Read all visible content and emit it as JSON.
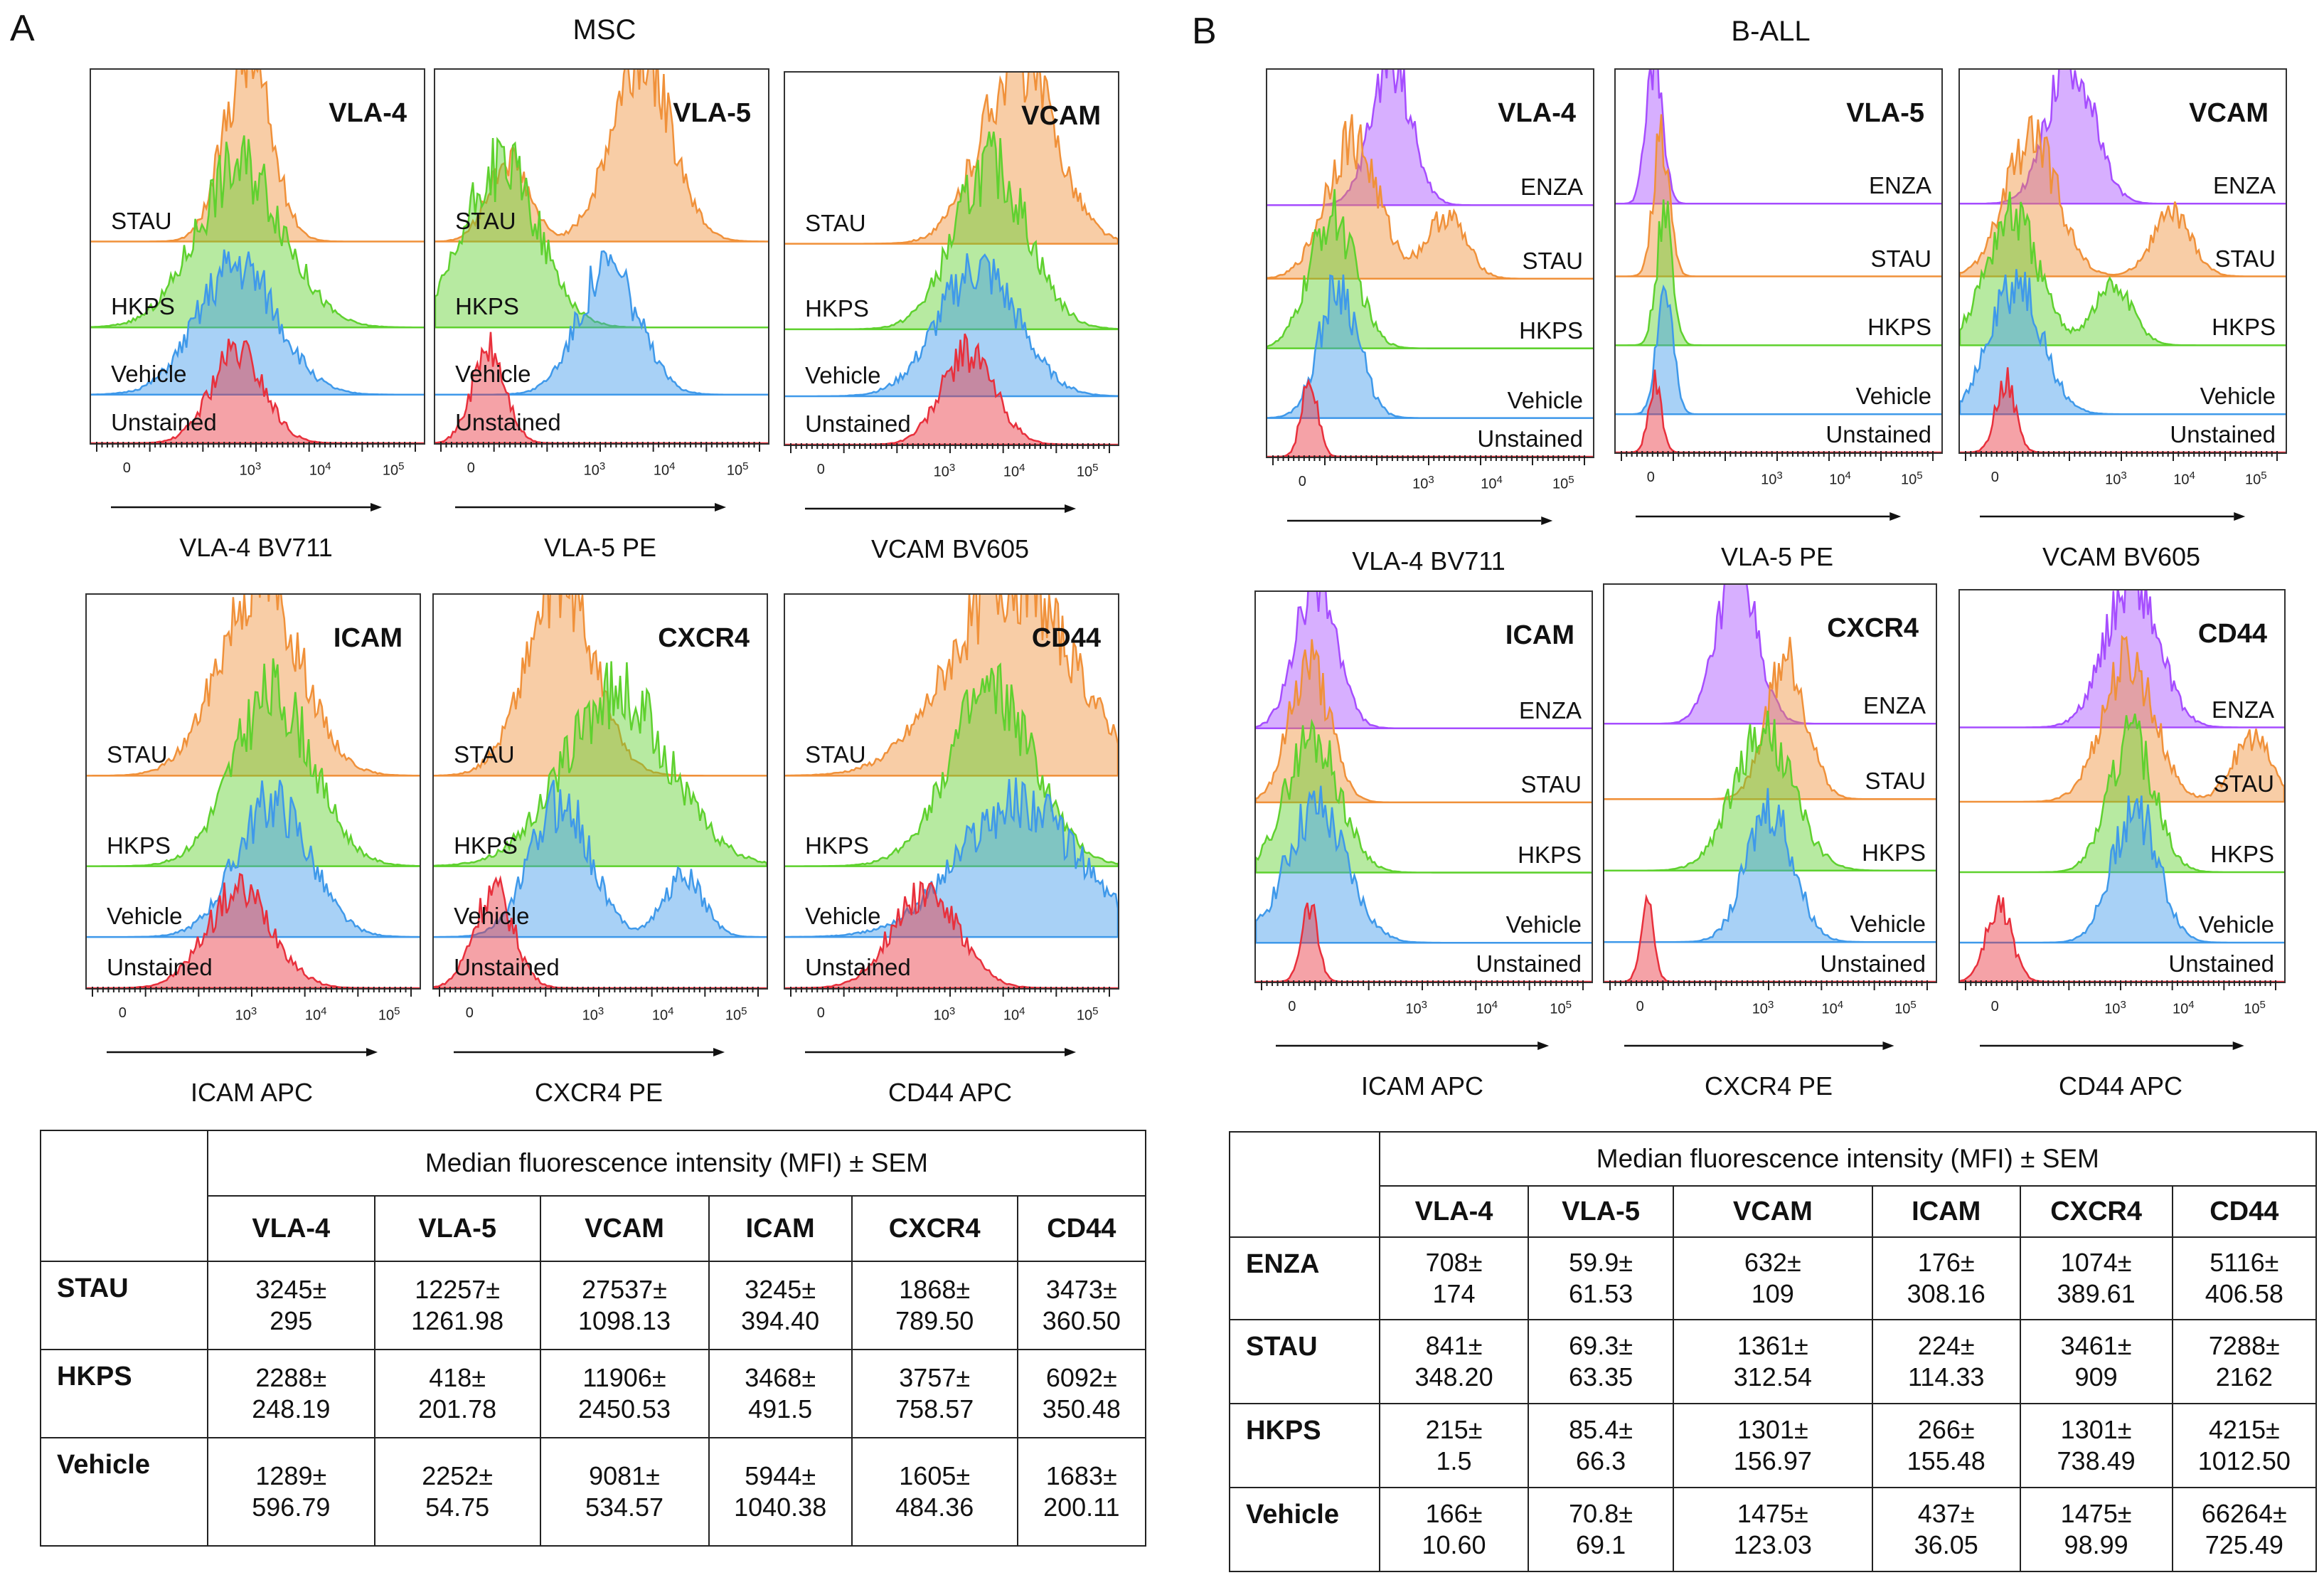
{
  "panels": [
    {
      "letter": "A",
      "title": "MSC",
      "plots": [
        {
          "marker": "VLA-4",
          "axis_label": "VLA-4 BV711",
          "tracks": [
            "STAU",
            "HKPS",
            "Vehicle",
            "Unstained"
          ]
        },
        {
          "marker": "VLA-5",
          "axis_label": "VLA-5 PE",
          "tracks": [
            "STAU",
            "HKPS",
            "Vehicle",
            "Unstained"
          ]
        },
        {
          "marker": "VCAM",
          "axis_label": "VCAM BV605",
          "tracks": [
            "STAU",
            "HKPS",
            "Vehicle",
            "Unstained"
          ]
        },
        {
          "marker": "ICAM",
          "axis_label": "ICAM APC",
          "tracks": [
            "STAU",
            "HKPS",
            "Vehicle",
            "Unstained"
          ]
        },
        {
          "marker": "CXCR4",
          "axis_label": "CXCR4 PE",
          "tracks": [
            "STAU",
            "HKPS",
            "Vehicle",
            "Unstained"
          ]
        },
        {
          "marker": "CD44",
          "axis_label": "CD44 APC",
          "tracks": [
            "STAU",
            "HKPS",
            "Vehicle",
            "Unstained"
          ]
        }
      ]
    },
    {
      "letter": "B",
      "title": "B-ALL",
      "plots": [
        {
          "marker": "VLA-4",
          "axis_label": "VLA-4 BV711",
          "tracks": [
            "ENZA",
            "STAU",
            "HKPS",
            "Vehicle",
            "Unstained"
          ]
        },
        {
          "marker": "VLA-5",
          "axis_label": "VLA-5 PE",
          "tracks": [
            "ENZA",
            "STAU",
            "HKPS",
            "Vehicle",
            "Unstained"
          ]
        },
        {
          "marker": "VCAM",
          "axis_label": "VCAM BV605",
          "tracks": [
            "ENZA",
            "STAU",
            "HKPS",
            "Vehicle",
            "Unstained"
          ]
        },
        {
          "marker": "ICAM",
          "axis_label": "ICAM APC",
          "tracks": [
            "ENZA",
            "STAU",
            "HKPS",
            "Vehicle",
            "Unstained"
          ]
        },
        {
          "marker": "CXCR4",
          "axis_label": "CXCR4 PE",
          "tracks": [
            "ENZA",
            "STAU",
            "HKPS",
            "Vehicle",
            "Unstained"
          ]
        },
        {
          "marker": "CD44",
          "axis_label": "CD44 APC",
          "tracks": [
            "ENZA",
            "STAU",
            "HKPS",
            "Vehicle",
            "Unstained"
          ]
        }
      ]
    }
  ],
  "axis_ticks": {
    "zero": "0",
    "base": "10",
    "exponents": [
      "3",
      "4",
      "5"
    ]
  },
  "colors": {
    "ENZA": "#a64dff",
    "STAU": "#f0913a",
    "HKPS": "#5fd12f",
    "Vehicle": "#3f99ea",
    "Unstained": "#e8303c"
  },
  "tables": [
    {
      "header": "Median fluorescence intensity (MFI) ± SEM",
      "columns": [
        "VLA-4",
        "VLA-5",
        "VCAM",
        "ICAM",
        "CXCR4",
        "CD44"
      ],
      "rows": [
        {
          "name": "STAU",
          "cells": [
            [
              "3245±",
              "295"
            ],
            [
              "12257±",
              "1261.98"
            ],
            [
              "27537±",
              "1098.13"
            ],
            [
              "3245±",
              "394.40"
            ],
            [
              "1868±",
              "789.50"
            ],
            [
              "3473±",
              "360.50"
            ]
          ]
        },
        {
          "name": "HKPS",
          "cells": [
            [
              "2288±",
              "248.19"
            ],
            [
              "418±",
              "201.78"
            ],
            [
              "11906±",
              "2450.53"
            ],
            [
              "3468±",
              "491.5"
            ],
            [
              "3757±",
              "758.57"
            ],
            [
              "6092±",
              "350.48"
            ]
          ]
        },
        {
          "name": "Vehicle",
          "cells": [
            [
              "1289±",
              "596.79"
            ],
            [
              "2252±",
              "54.75"
            ],
            [
              "9081±",
              "534.57"
            ],
            [
              "5944±",
              "1040.38"
            ],
            [
              "1605±",
              "484.36"
            ],
            [
              "1683±",
              "200.11"
            ]
          ]
        }
      ]
    },
    {
      "header": "Median fluorescence intensity (MFI) ± SEM",
      "columns": [
        "VLA-4",
        "VLA-5",
        "VCAM",
        "ICAM",
        "CXCR4",
        "CD44"
      ],
      "rows": [
        {
          "name": "ENZA",
          "cells": [
            [
              "708±",
              "174"
            ],
            [
              "59.9±",
              "61.53"
            ],
            [
              "632±",
              "109"
            ],
            [
              "176±",
              "308.16"
            ],
            [
              "1074±",
              "389.61"
            ],
            [
              "5116±",
              "406.58"
            ]
          ]
        },
        {
          "name": "STAU",
          "cells": [
            [
              "841±",
              "348.20"
            ],
            [
              "69.3±",
              "63.35"
            ],
            [
              "1361±",
              "312.54"
            ],
            [
              "224±",
              "114.33"
            ],
            [
              "3461±",
              "909"
            ],
            [
              "7288±",
              "2162"
            ]
          ]
        },
        {
          "name": "HKPS",
          "cells": [
            [
              "215±",
              "1.5"
            ],
            [
              "85.4±",
              "66.3"
            ],
            [
              "1301±",
              "156.97"
            ],
            [
              "266±",
              "155.48"
            ],
            [
              "1301±",
              "738.49"
            ],
            [
              "4215±",
              "1012.50"
            ]
          ]
        },
        {
          "name": "Vehicle",
          "cells": [
            [
              "166±",
              "10.60"
            ],
            [
              "70.8±",
              "69.1"
            ],
            [
              "1475±",
              "123.03"
            ],
            [
              "437±",
              "36.05"
            ],
            [
              "1475±",
              "98.99"
            ],
            [
              "66264±",
              "725.49"
            ]
          ]
        }
      ]
    }
  ]
}
